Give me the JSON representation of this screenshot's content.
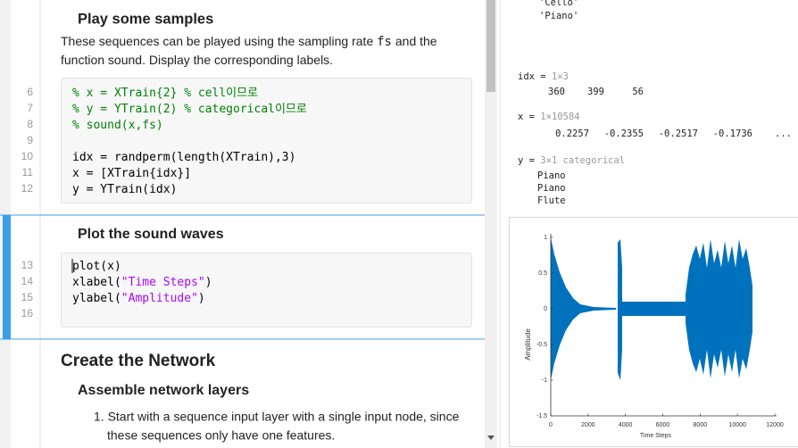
{
  "section_1": {
    "heading": "Play some samples",
    "paragraph": [
      [
        {
          "t": "These sequences can be played using the sampling rate "
        },
        {
          "t": "fs",
          "mono": true
        },
        {
          "t": " and the"
        }
      ],
      [
        {
          "t": "function sound. Display the corresponding labels."
        }
      ]
    ],
    "code": [
      {
        "number": 6,
        "code": [
          "% x = XTrain{2} % cell이므로"
        ]
      },
      {
        "number": 7,
        "code": [
          "% y = YTrain(2) % categorical이므로"
        ]
      },
      {
        "number": 8,
        "code": [
          "% sound(x,fs)"
        ]
      },
      {
        "number": 9
      },
      {
        "number": 10,
        "code": [
          "idx = randperm(length(XTrain),3)"
        ]
      },
      {
        "number": 11,
        "code": [
          "x = [XTrain{idx}]"
        ]
      },
      {
        "number": 12,
        "code": [
          "y = YTrain(idx)"
        ]
      }
    ]
  },
  "section_2": {
    "heading": "Plot the sound waves",
    "code": [
      {
        "number": 13,
        "code": [
          "plot(x)"
        ]
      },
      {
        "number": 14,
        "code": [
          "xlabel(",
          "\"Time Steps\"",
          ")"
        ]
      },
      {
        "number": 15,
        "code": [
          "ylabel(",
          "\"Amplitude\"",
          ")"
        ]
      },
      {
        "number": 16
      }
    ]
  },
  "section_3": {
    "heading": "Create the Network",
    "subheading": "Assemble network layers",
    "list_item": [
      "1. Start with a sequence input layer with a single input node, since",
      "these sequences only have one features."
    ]
  },
  "output": {
    "top": [
      "'Cello'",
      "'Piano'"
    ],
    "idx": {
      "name": "idx = ",
      "size": "1×3",
      "values": [
        360,
        399,
        56
      ]
    },
    "x": {
      "name": "x = ",
      "size": "1×10584",
      "values": [
        0.2257,
        -0.2355,
        -0.2517,
        -0.1736
      ],
      "more": "..."
    },
    "y": {
      "name": "y = ",
      "size": "3×1 categorical",
      "values": [
        "Piano",
        "Piano",
        "Flute"
      ]
    }
  },
  "chart_data": {
    "type": "line",
    "xlabel": "Time Steps",
    "ylabel": "Amplitude",
    "color": "#0072bd",
    "xlim": [
      0,
      12000
    ],
    "ylim": [
      -1.5,
      1
    ],
    "xticks": [
      0,
      2000,
      4000,
      6000,
      8000,
      10000,
      12000
    ],
    "yticks": [
      -1.5,
      -1,
      -0.5,
      0,
      0.5,
      1
    ]
  }
}
